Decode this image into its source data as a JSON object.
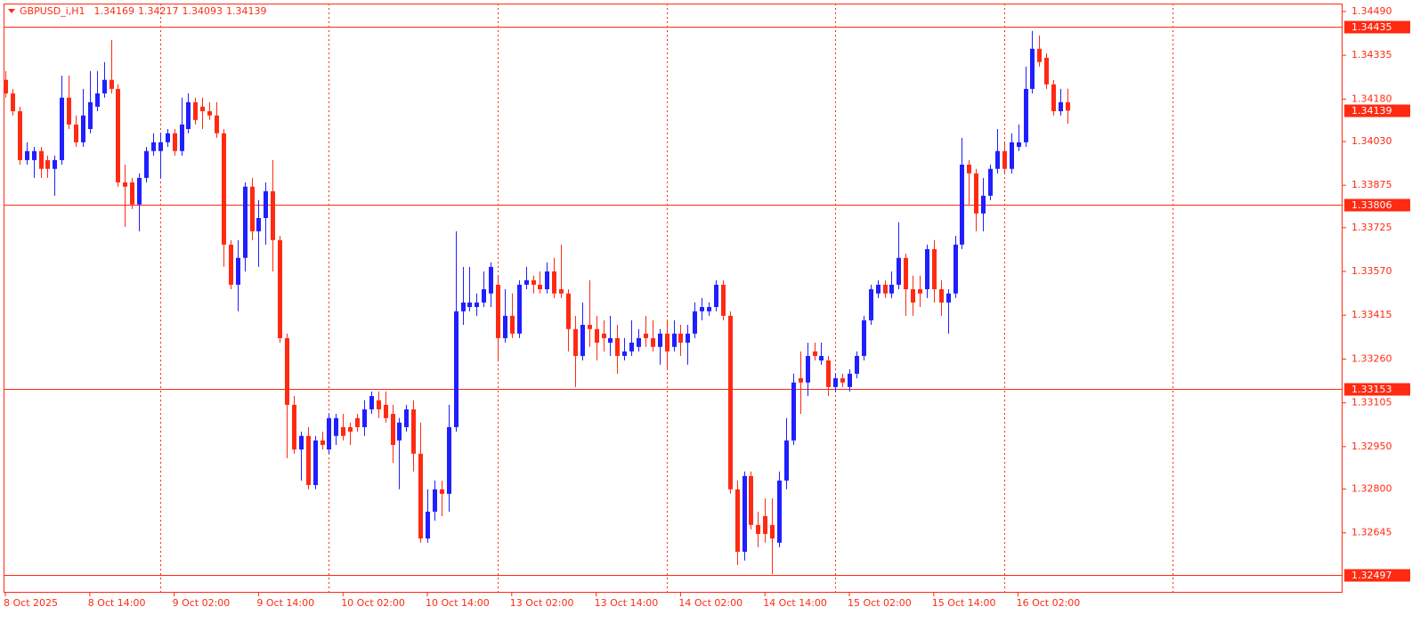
{
  "chart_data": {
    "type": "candlestick",
    "title": "GBPUSD_i,H1",
    "bull_color": "#1f1fff",
    "bear_color": "#ff2a12",
    "level_color": "#ff2a12",
    "categories": [
      "8 Oct 2025",
      null,
      null,
      null,
      null,
      null,
      null,
      null,
      null,
      null,
      null,
      null,
      "8 Oct 14:00",
      null,
      null,
      null,
      null,
      null,
      null,
      null,
      null,
      null,
      null,
      null,
      "9 Oct 02:00",
      null,
      null,
      null,
      null,
      null,
      null,
      null,
      null,
      null,
      null,
      null,
      "9 Oct 14:00",
      null,
      null,
      null,
      null,
      null,
      null,
      null,
      null,
      null,
      null,
      null,
      "10 Oct 02:00",
      null,
      null,
      null,
      null,
      null,
      null,
      null,
      null,
      null,
      null,
      null,
      "10 Oct 14:00",
      null,
      null,
      null,
      null,
      null,
      null,
      null,
      null,
      null,
      null,
      null,
      "13 Oct 02:00",
      null,
      null,
      null,
      null,
      null,
      null,
      null,
      null,
      null,
      null,
      null,
      "13 Oct 14:00",
      null,
      null,
      null,
      null,
      null,
      null,
      null,
      null,
      null,
      null,
      null,
      "14 Oct 02:00",
      null,
      null,
      null,
      null,
      null,
      null,
      null,
      null,
      null,
      null,
      null,
      "14 Oct 14:00",
      null,
      null,
      null,
      null,
      null,
      null,
      null,
      null,
      null,
      null,
      null,
      "15 Oct 02:00",
      null,
      null,
      null,
      null,
      null,
      null,
      null,
      null,
      null,
      null,
      null,
      "15 Oct 14:00",
      null,
      null,
      null,
      null,
      null,
      null,
      null,
      null,
      null,
      null,
      null,
      "16 Oct 02:00",
      null,
      null,
      null,
      null,
      null,
      null,
      null
    ],
    "open": [
      1.34248,
      1.342,
      1.34137,
      1.33964,
      1.33964,
      1.33996,
      1.33964,
      1.33933,
      1.33964,
      1.34185,
      1.3409,
      1.34027,
      1.34074,
      1.34153,
      1.342,
      1.34248,
      1.34216,
      1.33885,
      1.33885,
      1.33807,
      1.33901,
      1.33996,
      1.33996,
      1.34027,
      1.34059,
      1.33996,
      1.34074,
      1.34169,
      1.34153,
      1.34137,
      1.34122,
      1.34059,
      1.33665,
      1.33523,
      1.33618,
      1.3387,
      1.33712,
      1.33759,
      1.33854,
      1.33681,
      1.33334,
      1.33098,
      1.3294,
      1.32988,
      1.32814,
      1.32972,
      1.3294,
      1.32988,
      1.33019,
      1.33019,
      1.33051,
      1.33019,
      1.33082,
      1.33114,
      1.33098,
      1.33066,
      1.32972,
      1.33019,
      1.33082,
      1.32925,
      1.32625,
      1.3272,
      1.32799,
      1.32783,
      1.33019,
      1.33429,
      1.33444,
      1.33444,
      1.3346,
      1.33492,
      1.33523,
      1.33334,
      1.33413,
      1.3335,
      1.33523,
      1.33539,
      1.33523,
      1.33507,
      1.3357,
      1.33507,
      1.33492,
      1.33366,
      1.33271,
      1.33381,
      1.33366,
      1.3335,
      1.33318,
      1.33334,
      1.33271,
      1.33287,
      1.33303,
      1.3335,
      1.33334,
      1.33303,
      1.3335,
      1.33303,
      1.3335,
      1.33318,
      1.3335,
      1.33429,
      1.33429,
      1.33444,
      1.33523,
      1.33413,
      1.32799,
      1.32578,
      1.32846,
      1.32673,
      1.32704,
      1.32673,
      1.3261,
      1.3283,
      1.32972,
      1.33192,
      1.33177,
      1.33287,
      1.33255,
      1.33255,
      1.33161,
      1.33192,
      1.33161,
      1.33208,
      1.33271,
      1.33397,
      1.33492,
      1.33523,
      1.33492,
      1.33523,
      1.33618,
      1.33507,
      1.33507,
      1.33507,
      1.33649,
      1.33507,
      1.3346,
      1.33492,
      1.33665,
      1.33948,
      1.33917,
      1.33775,
      1.33838,
      1.33933,
      1.33996,
      1.33933,
      1.34011,
      1.34027,
      1.34216,
      1.34358,
      1.34326,
      1.34232,
      1.34137,
      1.34169
    ],
    "high": [
      1.34279,
      1.34216,
      1.34153,
      1.34027,
      1.34011,
      1.34011,
      1.3398,
      1.3398,
      1.34263,
      1.34263,
      1.34122,
      1.34216,
      1.34279,
      1.34279,
      1.34311,
      1.34389,
      1.34232,
      1.33948,
      1.33901,
      1.33917,
      1.34011,
      1.34059,
      1.34059,
      1.34074,
      1.34074,
      1.34185,
      1.342,
      1.34185,
      1.34185,
      1.34169,
      1.34169,
      1.34074,
      1.33681,
      1.33681,
      1.33885,
      1.33901,
      1.33822,
      1.33885,
      1.33964,
      1.33696,
      1.3335,
      1.33129,
      1.33003,
      1.33019,
      1.32988,
      1.33003,
      1.33066,
      1.33066,
      1.33066,
      1.33035,
      1.33066,
      1.33114,
      1.33145,
      1.33145,
      1.33145,
      1.33098,
      1.33051,
      1.33098,
      1.33114,
      1.33035,
      1.32799,
      1.3283,
      1.3283,
      1.33098,
      1.33712,
      1.33586,
      1.33586,
      1.33492,
      1.3357,
      1.33602,
      1.33555,
      1.33507,
      1.33492,
      1.33539,
      1.33586,
      1.33555,
      1.3357,
      1.33602,
      1.33618,
      1.33665,
      1.33507,
      1.33413,
      1.3346,
      1.33539,
      1.33413,
      1.33397,
      1.33413,
      1.33381,
      1.33334,
      1.33397,
      1.33366,
      1.33413,
      1.33397,
      1.33366,
      1.33397,
      1.33397,
      1.33381,
      1.33381,
      1.3346,
      1.33476,
      1.3346,
      1.33539,
      1.33539,
      1.33429,
      1.3283,
      1.32862,
      1.32862,
      1.3272,
      1.32767,
      1.32767,
      1.32862,
      1.33051,
      1.33208,
      1.33287,
      1.33318,
      1.33318,
      1.33318,
      1.33271,
      1.33208,
      1.33208,
      1.33224,
      1.33287,
      1.33413,
      1.33523,
      1.33539,
      1.33539,
      1.3357,
      1.33744,
      1.33633,
      1.33555,
      1.33555,
      1.33665,
      1.33681,
      1.33539,
      1.33507,
      1.33696,
      1.34043,
      1.33964,
      1.33933,
      1.33901,
      1.33948,
      1.34074,
      1.34027,
      1.34059,
      1.3409,
      1.34295,
      1.34421,
      1.34405,
      1.34342,
      1.34248,
      1.34216,
      1.34217
    ],
    "low": [
      1.34185,
      1.34122,
      1.33948,
      1.33948,
      1.33901,
      1.33901,
      1.33901,
      1.33838,
      1.33948,
      1.34074,
      1.34011,
      1.34011,
      1.34059,
      1.34137,
      1.34185,
      1.342,
      1.3387,
      1.33728,
      1.33791,
      1.33712,
      1.33885,
      1.3398,
      1.33901,
      1.34011,
      1.3398,
      1.3398,
      1.34059,
      1.3409,
      1.34074,
      1.34106,
      1.34043,
      1.33586,
      1.33507,
      1.33429,
      1.3357,
      1.33681,
      1.33586,
      1.33665,
      1.3357,
      1.33318,
      1.32909,
      1.32925,
      1.3283,
      1.32799,
      1.32799,
      1.3294,
      1.32925,
      1.32956,
      1.32972,
      1.32956,
      1.33003,
      1.32988,
      1.33066,
      1.33051,
      1.33035,
      1.32893,
      1.32799,
      1.33003,
      1.32862,
      1.3261,
      1.3261,
      1.32688,
      1.32704,
      1.3272,
      1.33003,
      1.33381,
      1.33429,
      1.33413,
      1.33444,
      1.33444,
      1.33255,
      1.33318,
      1.33334,
      1.33334,
      1.33507,
      1.33492,
      1.33492,
      1.33492,
      1.33476,
      1.33476,
      1.33287,
      1.33161,
      1.33255,
      1.33303,
      1.33255,
      1.33287,
      1.33271,
      1.33208,
      1.33255,
      1.33271,
      1.33287,
      1.33303,
      1.33287,
      1.3324,
      1.33224,
      1.33287,
      1.33271,
      1.3324,
      1.33334,
      1.33397,
      1.33413,
      1.33429,
      1.33397,
      1.32783,
      1.32531,
      1.32547,
      1.32657,
      1.32594,
      1.3261,
      1.32499,
      1.32594,
      1.32799,
      1.32956,
      1.33066,
      1.33129,
      1.33255,
      1.3324,
      1.33129,
      1.33145,
      1.33161,
      1.33145,
      1.33192,
      1.33255,
      1.33381,
      1.33476,
      1.33476,
      1.33476,
      1.33507,
      1.33413,
      1.33413,
      1.33444,
      1.33476,
      1.3346,
      1.33413,
      1.3335,
      1.33476,
      1.33649,
      1.33807,
      1.33712,
      1.33712,
      1.33822,
      1.33917,
      1.33917,
      1.33917,
      1.33996,
      1.34011,
      1.342,
      1.34295,
      1.34216,
      1.34122,
      1.34122,
      1.34093
    ],
    "close": [
      1.342,
      1.34137,
      1.33964,
      1.33996,
      1.33996,
      1.33933,
      1.33933,
      1.33964,
      1.34185,
      1.3409,
      1.34027,
      1.34122,
      1.34169,
      1.342,
      1.34248,
      1.34216,
      1.33885,
      1.3387,
      1.33807,
      1.33901,
      1.33996,
      1.34027,
      1.34027,
      1.34059,
      1.33996,
      1.3409,
      1.34169,
      1.34106,
      1.34137,
      1.34122,
      1.34059,
      1.33665,
      1.33523,
      1.33618,
      1.3387,
      1.33712,
      1.33759,
      1.33854,
      1.33681,
      1.33334,
      1.33098,
      1.3294,
      1.32988,
      1.32814,
      1.32972,
      1.32956,
      1.33051,
      1.33051,
      1.32988,
      1.33003,
      1.33019,
      1.33082,
      1.33129,
      1.33082,
      1.33051,
      1.32956,
      1.33035,
      1.33082,
      1.32925,
      1.32625,
      1.3272,
      1.32799,
      1.32783,
      1.33019,
      1.33429,
      1.3346,
      1.3346,
      1.3346,
      1.33507,
      1.33586,
      1.33334,
      1.33413,
      1.3335,
      1.33523,
      1.33539,
      1.33523,
      1.33507,
      1.3357,
      1.33492,
      1.33492,
      1.33366,
      1.33271,
      1.33381,
      1.33366,
      1.33318,
      1.33334,
      1.33334,
      1.33271,
      1.33287,
      1.33318,
      1.33334,
      1.33334,
      1.33303,
      1.3335,
      1.33287,
      1.3335,
      1.33318,
      1.3335,
      1.33429,
      1.33444,
      1.33444,
      1.33523,
      1.33413,
      1.32799,
      1.32578,
      1.32846,
      1.32673,
      1.32641,
      1.32641,
      1.32625,
      1.3283,
      1.32972,
      1.33177,
      1.33177,
      1.33271,
      1.33271,
      1.33271,
      1.33161,
      1.33192,
      1.33177,
      1.33208,
      1.33271,
      1.33397,
      1.33507,
      1.33523,
      1.33492,
      1.33523,
      1.33618,
      1.33507,
      1.3346,
      1.33492,
      1.33649,
      1.33507,
      1.3346,
      1.33492,
      1.33665,
      1.33948,
      1.33917,
      1.33775,
      1.33838,
      1.33933,
      1.33996,
      1.33933,
      1.34027,
      1.34027,
      1.34216,
      1.34358,
      1.34311,
      1.34232,
      1.34137,
      1.34169,
      1.34139
    ],
    "ylim": [
      1.32433,
      1.34518
    ],
    "yticks": [
      {
        "value": 1.3449,
        "label": "1.34490"
      },
      1.34335,
      {
        "value": 1.3418,
        "label": "1.34180"
      },
      {
        "value": 1.3403,
        "label": "1.34030"
      },
      1.33875,
      1.33725,
      {
        "value": 1.3357,
        "label": "1.33570"
      },
      1.33415,
      {
        "value": 1.3326,
        "label": "1.33260"
      },
      1.33105,
      {
        "value": 1.3295,
        "label": "1.32950"
      },
      {
        "value": 1.328,
        "label": "1.32800"
      },
      1.32645
    ],
    "levels": [
      1.34435,
      1.33806,
      1.33153,
      1.32497
    ]
  }
}
